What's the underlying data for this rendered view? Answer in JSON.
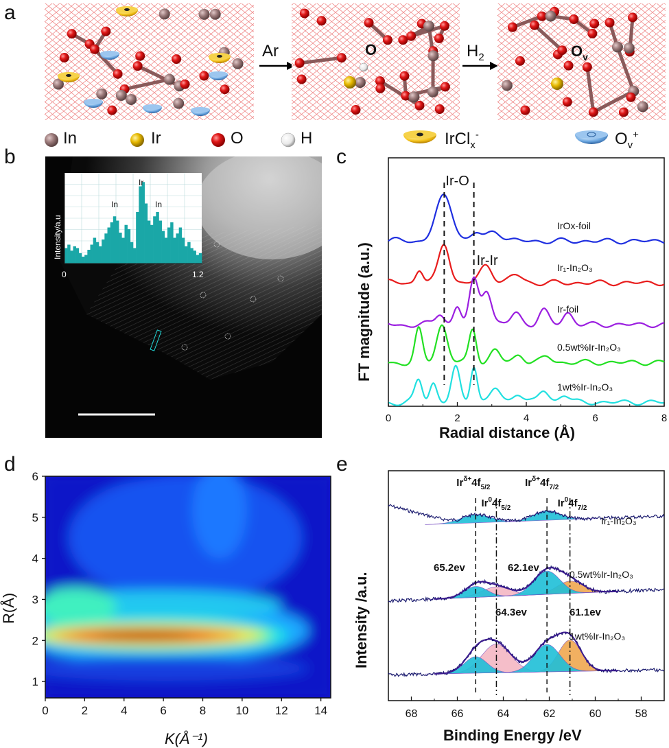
{
  "panel_a": {
    "label": "a",
    "step1_gas": "Ar",
    "step2_gas": "H",
    "step2_sub": "2",
    "o_label": "O",
    "ov_label": "O",
    "ov_sub": "v",
    "legend": [
      {
        "name": "In",
        "color": "#9c7b7b"
      },
      {
        "name": "Ir",
        "color": "#e6b800"
      },
      {
        "name": "O",
        "color": "#e01818"
      },
      {
        "name": "H",
        "color": "#f4f4f4"
      }
    ],
    "legend_ircl": "IrCl",
    "legend_ircl_sub": "x",
    "legend_ircl_sup": "-",
    "legend_ov": "O",
    "legend_ov_sub": "v",
    "legend_ov_sup": "+"
  },
  "panel_b": {
    "label": "b",
    "inset_ylabel": "Intensity/a.u",
    "inset_x0": "0",
    "inset_x1": "1.2",
    "peak_labels": [
      "In",
      "Ir",
      "In"
    ],
    "profile": [
      0.18,
      0.22,
      0.15,
      0.2,
      0.18,
      0.12,
      0.08,
      0.1,
      0.16,
      0.22,
      0.3,
      0.25,
      0.2,
      0.28,
      0.35,
      0.42,
      0.48,
      0.55,
      0.5,
      0.36,
      0.3,
      0.45,
      0.4,
      0.25,
      0.18,
      0.6,
      0.9,
      0.95,
      0.7,
      0.5,
      0.45,
      0.55,
      0.6,
      0.5,
      0.38,
      0.3,
      0.42,
      0.48,
      0.3,
      0.35,
      0.42,
      0.3,
      0.2,
      0.25,
      0.18,
      0.15,
      0.1,
      0.12
    ]
  },
  "panel_c": {
    "label": "c",
    "chart_data": {
      "type": "line",
      "xlabel": "Radial distance (Å)",
      "ylabel": "FT magnitude (a.u.)",
      "xlim": [
        0,
        8
      ],
      "xticks": [
        0,
        2,
        4,
        6,
        8
      ],
      "annotations": [
        "Ir-O",
        "Ir-Ir"
      ],
      "marker_lines": [
        1.62,
        2.48
      ],
      "series": [
        {
          "name": "IrOx-foil",
          "color": "#1f2fe0",
          "offset": 4.1,
          "peaks": [
            [
              1.62,
              1.1,
              0.35
            ],
            [
              2.55,
              0.2,
              0.2
            ],
            [
              3.1,
              0.25,
              0.3
            ]
          ],
          "base": 0.05
        },
        {
          "name": "Ir₁-In₂O₃",
          "color": "#e81c1c",
          "offset": 3.05,
          "peaks": [
            [
              0.9,
              0.35,
              0.15
            ],
            [
              1.62,
              1.0,
              0.22
            ],
            [
              2.85,
              0.45,
              0.25
            ],
            [
              3.7,
              0.2,
              0.25
            ]
          ],
          "base": 0.05
        },
        {
          "name": "Ir-foil",
          "color": "#9b1fe0",
          "offset": 2.0,
          "peaks": [
            [
              1.5,
              0.3,
              0.18
            ],
            [
              2.0,
              0.45,
              0.15
            ],
            [
              2.48,
              1.1,
              0.18
            ],
            [
              2.85,
              0.9,
              0.2
            ],
            [
              3.7,
              0.3,
              0.2
            ],
            [
              4.5,
              0.35,
              0.2
            ],
            [
              5.2,
              0.3,
              0.2
            ]
          ],
          "base": 0.05
        },
        {
          "name": "0.5wt%Ir-In₂O₃",
          "color": "#22e022",
          "offset": 1.05,
          "peaks": [
            [
              0.88,
              0.8,
              0.15
            ],
            [
              1.55,
              0.95,
              0.22
            ],
            [
              2.45,
              0.85,
              0.15
            ],
            [
              3.1,
              0.3,
              0.2
            ],
            [
              3.8,
              0.2,
              0.2
            ],
            [
              4.6,
              0.15,
              0.2
            ]
          ],
          "base": 0.05
        },
        {
          "name": "1wt%Ir-In₂O₃",
          "color": "#22e0e0",
          "offset": 0.05,
          "peaks": [
            [
              0.88,
              0.55,
              0.15
            ],
            [
              1.3,
              0.5,
              0.15
            ],
            [
              1.95,
              0.85,
              0.17
            ],
            [
              2.48,
              0.95,
              0.14
            ],
            [
              3.1,
              0.35,
              0.2
            ],
            [
              3.75,
              0.25,
              0.2
            ],
            [
              4.5,
              0.3,
              0.2
            ],
            [
              5.1,
              0.2,
              0.2
            ]
          ],
          "base": 0.05
        }
      ]
    }
  },
  "panel_d": {
    "label": "d",
    "chart_data": {
      "type": "heatmap",
      "xlabel": "K(Å⁻¹)",
      "ylabel": "R(Å)",
      "xlim": [
        0,
        14.5
      ],
      "ylim": [
        0.6,
        6
      ],
      "xticks": [
        0,
        2,
        4,
        6,
        8,
        10,
        12,
        14
      ],
      "yticks": [
        1,
        2,
        3,
        4,
        5,
        6
      ],
      "max_location": {
        "k": 5.5,
        "r": 1.8
      }
    }
  },
  "panel_e": {
    "label": "e",
    "chart_data": {
      "type": "line",
      "xlabel": "Binding Energy /eV",
      "ylabel": "Intensity /a.u.",
      "xlim": [
        69,
        57
      ],
      "xticks": [
        68,
        66,
        64,
        62,
        60,
        58
      ],
      "series_names": [
        "Ir₁-In₂O₃",
        "0.5wt%Ir-In₂O₃",
        "1wt%Ir-In₂O₃"
      ],
      "peak_lines": [
        {
          "energy": 65.2,
          "label": "Irδ+4f5/2",
          "style": "dashed"
        },
        {
          "energy": 64.3,
          "label": "Ir04f5/2",
          "style": "dashdot"
        },
        {
          "energy": 62.1,
          "label": "Irδ+4f7/2",
          "style": "dashed"
        },
        {
          "energy": 61.1,
          "label": "Ir04f7/2",
          "style": "dashdot"
        }
      ],
      "energy_labels": [
        "65.2ev",
        "62.1ev",
        "64.3ev",
        "61.1ev"
      ],
      "component_colors": {
        "ir_delta": "#1fbfd8",
        "ir0_52": "#f4b8c4",
        "ir0_72": "#f0a850"
      }
    }
  }
}
